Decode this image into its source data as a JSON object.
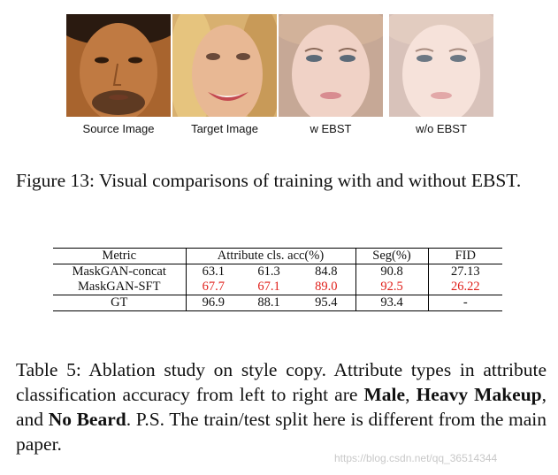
{
  "images": [
    {
      "caption": "Source Image"
    },
    {
      "caption": "Target Image"
    },
    {
      "caption": "w EBST"
    },
    {
      "caption": "w/o EBST"
    }
  ],
  "figure_caption": "Figure 13: Visual comparisons of training with and without EBST.",
  "table": {
    "headers": {
      "metric": "Metric",
      "attr": "Attribute cls. acc(%)",
      "seg": "Seg(%)",
      "fid": "FID"
    },
    "rows": [
      {
        "name": "MaskGAN-concat",
        "a1": "63.1",
        "a2": "61.3",
        "a3": "84.8",
        "seg": "90.8",
        "fid": "27.13"
      },
      {
        "name": "MaskGAN-SFT",
        "a1": "67.7",
        "a2": "67.1",
        "a3": "89.0",
        "seg": "92.5",
        "fid": "26.22"
      },
      {
        "name": "GT",
        "a1": "96.9",
        "a2": "88.1",
        "a3": "95.4",
        "seg": "93.4",
        "fid": "-"
      }
    ],
    "highlight_color": "#e0201b"
  },
  "table_caption": {
    "part1": "Table 5: Ablation study on style copy. Attribute types in attribute classification accuracy from left to right are ",
    "bold1": "Male",
    "part2": ", ",
    "bold2": "Heavy Makeup",
    "part3": ", and ",
    "bold3": "No Beard",
    "part4": ". P.S. The train/test split here is different from the main paper."
  },
  "watermark": "https://blog.csdn.net/qq_36514344"
}
